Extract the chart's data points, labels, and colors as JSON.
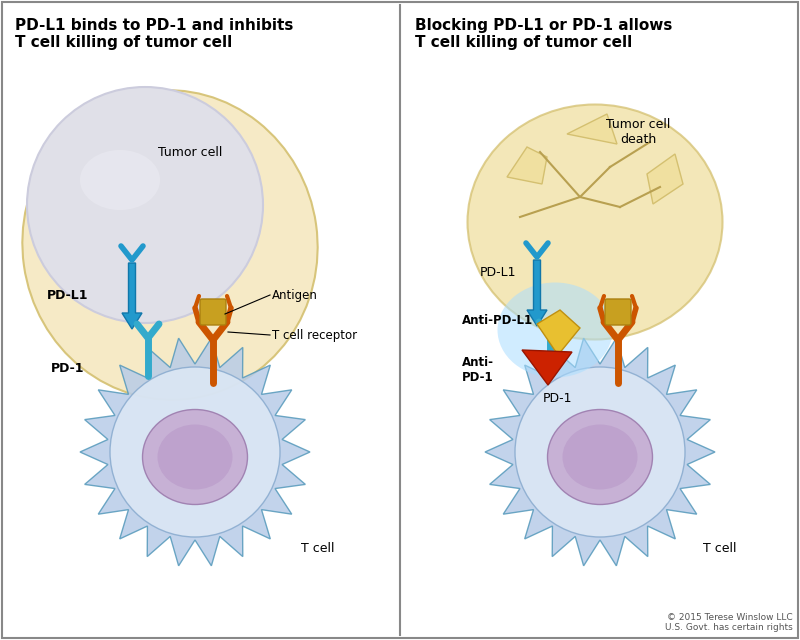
{
  "bg_color": "#ffffff",
  "left_title": "PD-L1 binds to PD-1 and inhibits\nT cell killing of tumor cell",
  "right_title": "Blocking PD-L1 or PD-1 allows\nT cell killing of tumor cell",
  "copyright": "© 2015 Terese Winslow LLC\nU.S. Govt. has certain rights",
  "left_labels": {
    "tumor_cell": "Tumor cell",
    "pd_l1": "PD-L1",
    "pd_1": "PD-1",
    "antigen": "Antigen",
    "t_cell_receptor": "T cell receptor",
    "t_cell": "T cell"
  },
  "right_labels": {
    "tumor_cell_death": "Tumor cell\ndeath",
    "pd_l1": "PD-L1",
    "anti_pd_l1": "Anti-PD-L1",
    "anti_pd_1": "Anti-\nPD-1",
    "pd_1": "PD-1",
    "t_cell": "T cell"
  },
  "colors": {
    "tumor_cell_fill": "#e0e0e8",
    "tumor_membrane": "#f5e8c0",
    "t_cell_fill": "#b8cce8",
    "t_cell_nucleus": "#c4a8d0",
    "t_cell_light": "#dde8f5",
    "pd_l1_color": "#2299cc",
    "pd_1_color": "#33aacc",
    "antigen_color": "#c8a020",
    "tcr_color": "#cc5500",
    "anti_pdl1_color": "#e8c030",
    "anti_pd1_color": "#cc2200",
    "glow_color": "#aaddff",
    "crack_fill": "#f0e0a0",
    "crack_edge": "#d4c070"
  }
}
